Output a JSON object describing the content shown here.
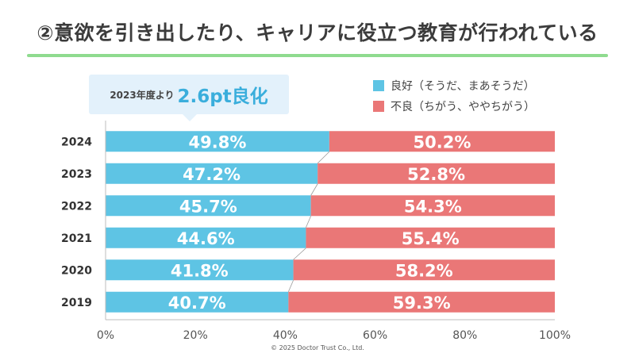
{
  "title": "②意欲を引き出したり、キャリアに役立つ教育が行われている",
  "callout": {
    "prefix": "2023年度より",
    "highlight": "2.6pt良化"
  },
  "legend": [
    {
      "label": "良好（そうだ、まあそうだ）",
      "color": "#5ec4e4"
    },
    {
      "label": "不良（ちがう、ややちがう）",
      "color": "#ea7777"
    }
  ],
  "footer": "© 2025 Doctor Trust Co., Ltd.",
  "chart_data": {
    "type": "bar",
    "orientation": "horizontal",
    "stacked": true,
    "categories": [
      "2024",
      "2023",
      "2022",
      "2021",
      "2020",
      "2019"
    ],
    "series": [
      {
        "name": "良好（そうだ、まあそうだ）",
        "values": [
          49.8,
          47.2,
          45.7,
          44.6,
          41.8,
          40.7
        ],
        "labels": [
          "49.8%",
          "47.2%",
          "45.7%",
          "44.6%",
          "41.8%",
          "40.7%"
        ],
        "color": "#5ec4e4"
      },
      {
        "name": "不良（ちがう、ややちがう）",
        "values": [
          50.2,
          52.8,
          54.3,
          55.4,
          58.2,
          59.3
        ],
        "labels": [
          "50.2%",
          "52.8%",
          "54.3%",
          "55.4%",
          "58.2%",
          "59.3%"
        ],
        "color": "#ea7777"
      }
    ],
    "xlim": [
      0,
      100
    ],
    "xticks": [
      "0%",
      "20%",
      "40%",
      "60%",
      "80%",
      "100%"
    ],
    "connector_lines": true,
    "grid": false,
    "legend_position": "top-right"
  }
}
